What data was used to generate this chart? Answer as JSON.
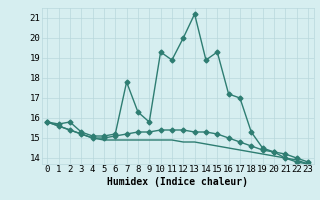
{
  "xlabel": "Humidex (Indice chaleur)",
  "x": [
    0,
    1,
    2,
    3,
    4,
    5,
    6,
    7,
    8,
    9,
    10,
    11,
    12,
    13,
    14,
    15,
    16,
    17,
    18,
    19,
    20,
    21,
    22,
    23
  ],
  "line1": [
    15.8,
    15.7,
    15.8,
    15.3,
    15.1,
    15.1,
    15.2,
    17.8,
    16.3,
    15.8,
    19.3,
    18.9,
    20.0,
    21.2,
    18.9,
    19.3,
    17.2,
    17.0,
    15.3,
    14.5,
    14.3,
    14.0,
    13.8,
    13.7
  ],
  "line2": [
    15.8,
    15.6,
    15.4,
    15.2,
    15.0,
    15.0,
    15.1,
    15.2,
    15.3,
    15.3,
    15.4,
    15.4,
    15.4,
    15.3,
    15.3,
    15.2,
    15.0,
    14.8,
    14.6,
    14.4,
    14.3,
    14.2,
    14.0,
    13.8
  ],
  "line3": [
    15.8,
    15.6,
    15.4,
    15.2,
    15.0,
    14.9,
    14.9,
    14.9,
    14.9,
    14.9,
    14.9,
    14.9,
    14.8,
    14.8,
    14.7,
    14.6,
    14.5,
    14.4,
    14.3,
    14.2,
    14.1,
    14.0,
    13.9,
    13.7
  ],
  "line_color": "#2e7d72",
  "bg_color": "#d6eef0",
  "grid_color": "#b8d8dc",
  "ylim": [
    13.7,
    21.5
  ],
  "yticks": [
    14,
    15,
    16,
    17,
    18,
    19,
    20,
    21
  ],
  "xticks": [
    0,
    1,
    2,
    3,
    4,
    5,
    6,
    7,
    8,
    9,
    10,
    11,
    12,
    13,
    14,
    15,
    16,
    17,
    18,
    19,
    20,
    21,
    22,
    23
  ],
  "marker": "D",
  "marker_size": 2.5,
  "line_width": 1.0,
  "xlabel_fontsize": 7,
  "tick_fontsize": 6.5
}
